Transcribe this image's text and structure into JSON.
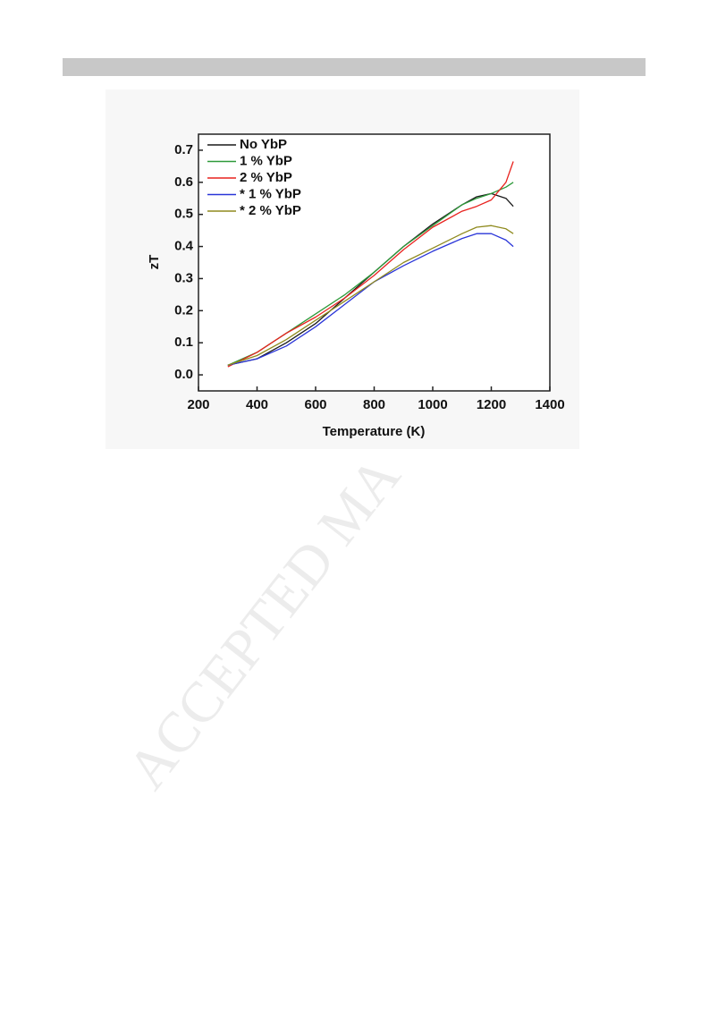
{
  "watermark": "ACCEPTED MA",
  "chart_data": {
    "type": "line",
    "xlabel": "Temperature (K)",
    "ylabel": "zT",
    "x": [
      300,
      400,
      500,
      600,
      700,
      800,
      900,
      1000,
      1100,
      1150,
      1200,
      1250,
      1275
    ],
    "series": [
      {
        "name": "No YbP",
        "color": "#1a1a1a",
        "values": [
          0.03,
          0.05,
          0.1,
          0.16,
          0.24,
          0.32,
          0.4,
          0.47,
          0.53,
          0.555,
          0.565,
          0.55,
          0.525
        ]
      },
      {
        "name": "1 % YbP",
        "color": "#2e9a3a",
        "values": [
          0.03,
          0.07,
          0.13,
          0.19,
          0.25,
          0.32,
          0.4,
          0.465,
          0.53,
          0.55,
          0.565,
          0.585,
          0.6
        ]
      },
      {
        "name": "2 % YbP",
        "color": "#e8221e",
        "values": [
          0.025,
          0.07,
          0.13,
          0.18,
          0.24,
          0.31,
          0.39,
          0.46,
          0.51,
          0.525,
          0.545,
          0.6,
          0.665
        ]
      },
      {
        "name": "* 1 % YbP",
        "color": "#2a35d8",
        "values": [
          0.03,
          0.05,
          0.09,
          0.15,
          0.22,
          0.29,
          0.34,
          0.385,
          0.425,
          0.44,
          0.44,
          0.42,
          0.4
        ]
      },
      {
        "name": "* 2 % YbP",
        "color": "#8f8a1e",
        "values": [
          0.03,
          0.06,
          0.11,
          0.17,
          0.23,
          0.29,
          0.35,
          0.395,
          0.44,
          0.46,
          0.465,
          0.455,
          0.44
        ]
      }
    ],
    "xlim": [
      200,
      1400
    ],
    "xticks": [
      200,
      400,
      600,
      800,
      1000,
      1200,
      1400
    ],
    "ylim": [
      -0.05,
      0.75
    ],
    "yticks": [
      {
        "value": 0,
        "label": "0.0"
      },
      0.1,
      0.2,
      0.3,
      0.4,
      0.5,
      0.6,
      0.7
    ]
  }
}
